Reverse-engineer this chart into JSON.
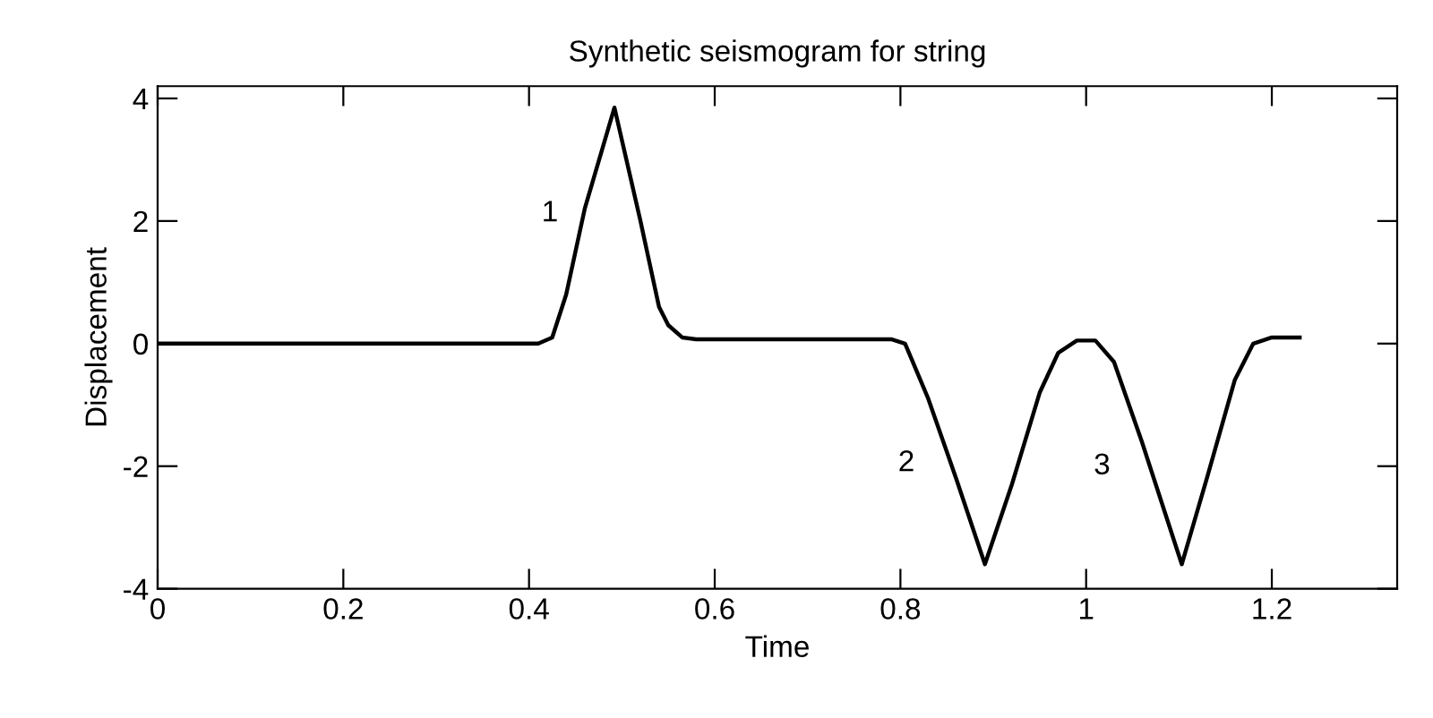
{
  "chart_data": {
    "type": "line",
    "title": "Synthetic seismogram for string",
    "xlabel": "Time",
    "ylabel": "Displacement",
    "x": [
      0,
      0.41,
      0.425,
      0.44,
      0.46,
      0.492,
      0.52,
      0.54,
      0.55,
      0.565,
      0.58,
      0.79,
      0.805,
      0.83,
      0.86,
      0.891,
      0.92,
      0.95,
      0.97,
      0.99,
      1.01,
      1.03,
      1.06,
      1.103,
      1.13,
      1.16,
      1.18,
      1.2,
      1.23
    ],
    "series": [
      {
        "color": "#000000",
        "values": [
          0,
          0,
          0.1,
          0.8,
          2.2,
          3.85,
          2.0,
          0.6,
          0.3,
          0.1,
          0.07,
          0.07,
          0,
          -0.9,
          -2.2,
          -3.6,
          -2.3,
          -0.8,
          -0.15,
          0.05,
          0.05,
          -0.3,
          -1.6,
          -3.6,
          -2.2,
          -0.6,
          0,
          0.1,
          0.1
        ]
      }
    ],
    "xlim": [
      0,
      1.335
    ],
    "ylim": [
      -4,
      4.2
    ],
    "xticks": [
      0,
      0.2,
      0.4,
      0.6,
      0.8,
      1,
      1.2
    ],
    "yticks": [
      -4,
      -2,
      0,
      2,
      4
    ],
    "annotations": [
      {
        "text": "1",
        "x": 0.46,
        "y": 2.2
      },
      {
        "text": "2",
        "x": 0.86,
        "y": -2.2
      },
      {
        "text": "3",
        "x": 1.06,
        "y": -1.6
      }
    ],
    "grid": false,
    "legend": false,
    "marker": "none",
    "line_style": "solid"
  }
}
